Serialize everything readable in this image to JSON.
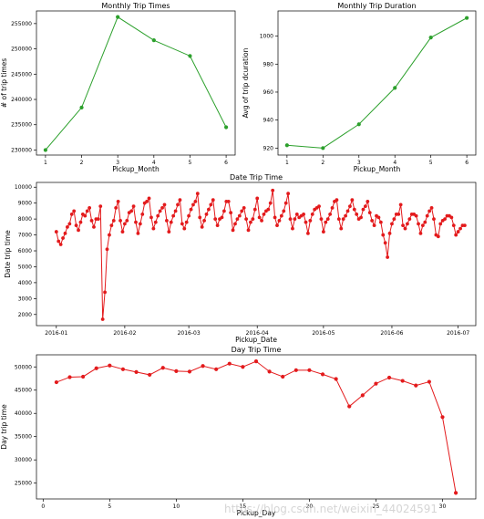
{
  "chart_data": [
    {
      "type": "line",
      "title": "Monthly Trip Times",
      "xlabel": "Pickup_Month",
      "ylabel": "# of trip times",
      "color": "#2ca02c",
      "marker": "dot",
      "x": [
        1,
        2,
        3,
        4,
        5,
        6
      ],
      "y": [
        230000,
        238400,
        256300,
        251700,
        248600,
        234500
      ],
      "xlim": [
        0.75,
        6.25
      ],
      "ylim": [
        229000,
        257500
      ],
      "xticks": [
        1,
        2,
        3,
        4,
        5,
        6
      ],
      "yticks": [
        230000,
        235000,
        240000,
        245000,
        250000,
        255000
      ]
    },
    {
      "type": "line",
      "title": "Monthly Trip Duration",
      "xlabel": "Pickup_Month",
      "ylabel": "Avg of trip dcuration",
      "color": "#2ca02c",
      "marker": "dot",
      "x": [
        1,
        2,
        3,
        4,
        5,
        6
      ],
      "y": [
        922,
        920,
        937,
        963,
        999,
        1013
      ],
      "xlim": [
        0.75,
        6.25
      ],
      "ylim": [
        915,
        1018
      ],
      "xticks": [
        1,
        2,
        3,
        4,
        5,
        6
      ],
      "yticks": [
        920,
        940,
        960,
        980,
        1000
      ]
    },
    {
      "type": "line",
      "title": "Date Trip Time",
      "xlabel": "Pickup_Date",
      "ylabel": "Date trip time",
      "color": "#e31a1c",
      "marker": "dot",
      "x_start": "2016-01-01",
      "y": [
        7200,
        6600,
        6400,
        6800,
        7100,
        7500,
        7700,
        8300,
        8500,
        7600,
        7300,
        7800,
        8300,
        8200,
        8500,
        8700,
        7900,
        7500,
        8000,
        8000,
        8800,
        1700,
        3400,
        6100,
        7000,
        7600,
        7900,
        8700,
        9100,
        7900,
        7200,
        7700,
        7900,
        8400,
        8500,
        8800,
        7800,
        7100,
        7700,
        8300,
        9000,
        9100,
        9300,
        8100,
        7400,
        7800,
        8200,
        8500,
        8700,
        8900,
        7900,
        7200,
        7800,
        8200,
        8500,
        8900,
        9200,
        7700,
        7400,
        7800,
        8200,
        8600,
        8900,
        9100,
        9600,
        8100,
        7500,
        7900,
        8300,
        8600,
        8900,
        9200,
        8000,
        7600,
        8000,
        8100,
        8500,
        9100,
        9100,
        8400,
        7300,
        7700,
        8000,
        8200,
        8500,
        8700,
        8000,
        7300,
        7800,
        8000,
        8600,
        9300,
        8100,
        7900,
        8300,
        8500,
        8600,
        9000,
        9800,
        8100,
        7600,
        7900,
        8200,
        8500,
        9000,
        9600,
        8000,
        7400,
        8000,
        8300,
        8100,
        8200,
        8300,
        7800,
        7100,
        7900,
        8300,
        8600,
        8700,
        8800,
        8000,
        7200,
        7800,
        8000,
        8300,
        8700,
        9100,
        9200,
        8000,
        7400,
        8000,
        8200,
        8500,
        8800,
        9200,
        8600,
        8300,
        8000,
        8100,
        8600,
        8800,
        9100,
        8400,
        7900,
        7600,
        8200,
        8100,
        7800,
        7000,
        6500,
        5600,
        7100,
        7700,
        8000,
        8300,
        8300,
        8900,
        7600,
        7400,
        7700,
        8000,
        8300,
        8300,
        8200,
        7700,
        7100,
        7600,
        7800,
        8200,
        8500,
        8700,
        8000,
        7000,
        6900,
        7700,
        7900,
        8000,
        8200,
        8200,
        8100,
        7600,
        7000,
        7200,
        7400,
        7600,
        7600
      ],
      "xlim": [
        "2015-12-23",
        "2016-07-09"
      ],
      "ylim": [
        1300,
        10300
      ],
      "xticks": [
        "2016-01",
        "2016-02",
        "2016-03",
        "2016-04",
        "2016-05",
        "2016-06",
        "2016-07"
      ],
      "yticks": [
        2000,
        3000,
        4000,
        5000,
        6000,
        7000,
        8000,
        9000,
        10000
      ]
    },
    {
      "type": "line",
      "title": "Day Trip Time",
      "xlabel": "Pickup_Day",
      "ylabel": "Day trip time",
      "color": "#e31a1c",
      "marker": "dot",
      "x": [
        1,
        2,
        3,
        4,
        5,
        6,
        7,
        8,
        9,
        10,
        11,
        12,
        13,
        14,
        15,
        16,
        17,
        18,
        19,
        20,
        21,
        22,
        23,
        24,
        25,
        26,
        27,
        28,
        29,
        30,
        31
      ],
      "y": [
        46700,
        47800,
        47900,
        49700,
        50300,
        49500,
        48900,
        48300,
        49800,
        49100,
        49000,
        50200,
        49500,
        50700,
        50000,
        51200,
        49000,
        47900,
        49300,
        49300,
        48400,
        47400,
        41500,
        43900,
        46400,
        47700,
        47000,
        46000,
        46800,
        39200,
        22900
      ],
      "xlim": [
        -0.5,
        32.5
      ],
      "ylim": [
        21600,
        52600
      ],
      "xticks": [
        0,
        5,
        10,
        15,
        20,
        25,
        30
      ],
      "yticks": [
        25000,
        30000,
        35000,
        40000,
        45000,
        50000
      ]
    }
  ]
}
